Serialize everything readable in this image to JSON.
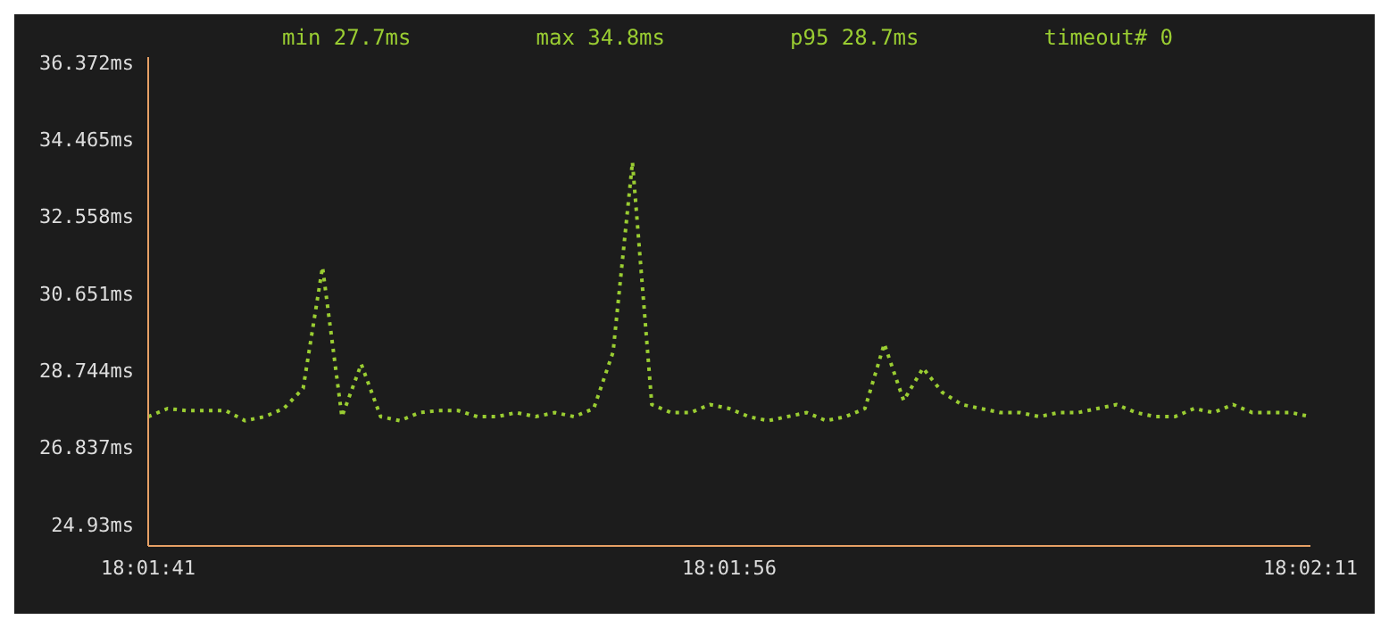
{
  "chart_data": {
    "type": "line",
    "annotations": [
      "min 27.7ms",
      "max 34.8ms",
      "p95 28.7ms",
      "timeout# 0"
    ],
    "categories": [
      "18:01:41",
      null,
      null,
      null,
      null,
      null,
      null,
      null,
      null,
      null,
      null,
      null,
      null,
      null,
      null,
      null,
      null,
      null,
      null,
      null,
      null,
      null,
      null,
      null,
      null,
      null,
      null,
      null,
      null,
      null,
      "18:01:56",
      null,
      null,
      null,
      null,
      null,
      null,
      null,
      null,
      null,
      null,
      null,
      null,
      null,
      null,
      null,
      null,
      null,
      null,
      null,
      null,
      null,
      null,
      null,
      null,
      null,
      null,
      null,
      null,
      null,
      "18:02:11"
    ],
    "series": [
      {
        "color": "#9acd32",
        "values": [
          27.6,
          27.8,
          27.75,
          27.75,
          27.75,
          27.5,
          27.6,
          27.8,
          28.3,
          31.3,
          27.6,
          28.9,
          27.6,
          27.5,
          27.7,
          27.75,
          27.75,
          27.6,
          27.6,
          27.7,
          27.6,
          27.7,
          27.6,
          27.8,
          29.2,
          33.9,
          27.9,
          27.7,
          27.7,
          27.9,
          27.8,
          27.6,
          27.5,
          27.6,
          27.7,
          27.5,
          27.6,
          27.8,
          29.4,
          28.0,
          28.8,
          28.2,
          27.9,
          27.8,
          27.7,
          27.7,
          27.6,
          27.7,
          27.7,
          27.8,
          27.9,
          27.7,
          27.6,
          27.6,
          27.8,
          27.7,
          27.9,
          27.7,
          27.7,
          27.7,
          27.6
        ]
      }
    ],
    "ylim": [
      24.4,
      36.5
    ],
    "yticks": [
      {
        "value": 24.93,
        "label": "24.93ms"
      },
      {
        "value": 26.837,
        "label": "26.837ms"
      },
      {
        "value": 28.744,
        "label": "28.744ms"
      },
      {
        "value": 30.651,
        "label": "30.651ms"
      },
      {
        "value": 32.558,
        "label": "32.558ms"
      },
      {
        "value": 34.465,
        "label": "34.465ms"
      },
      {
        "value": 36.372,
        "label": "36.372ms"
      }
    ],
    "grid": false,
    "legend": false,
    "marker": "none",
    "line_style": "dotted"
  }
}
